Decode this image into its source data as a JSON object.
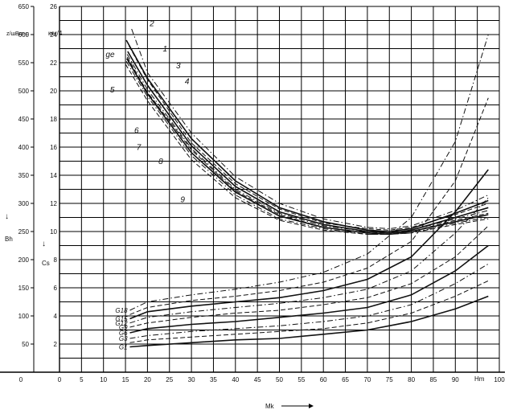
{
  "chart_data": {
    "type": "line",
    "title": "",
    "xlabel": "Mk",
    "x_unit": "Hm",
    "xlim": [
      0,
      100
    ],
    "x_ticks": [
      0,
      5,
      10,
      15,
      20,
      25,
      30,
      35,
      40,
      45,
      50,
      55,
      60,
      65,
      70,
      75,
      80,
      85,
      90,
      100
    ],
    "left_axis": {
      "label": "Bh",
      "unit": "z/шBm-u",
      "ylim": [
        0,
        650
      ],
      "ticks": [
        50,
        100,
        150,
        200,
        250,
        300,
        350,
        400,
        450,
        500,
        550,
        600,
        650
      ]
    },
    "right_axis": {
      "label": "Cs",
      "unit": "кer/4",
      "ylim": [
        0,
        26
      ],
      "ticks": [
        2,
        4,
        6,
        8,
        10,
        12,
        14,
        16,
        18,
        20,
        22,
        24,
        26
      ]
    },
    "grid": true,
    "fuel_curves": [
      {
        "name": "1",
        "style": "solid",
        "x": [
          15.2,
          20,
          30,
          40,
          50,
          60,
          70,
          75,
          80,
          90,
          97.5
        ],
        "y": [
          23.6,
          20.9,
          16.6,
          13.6,
          11.7,
          10.7,
          10.1,
          10.0,
          10.2,
          11.3,
          12.2
        ]
      },
      {
        "name": "2",
        "style": "dashdot",
        "x": [
          16.4,
          20,
          30,
          40,
          50,
          60,
          70,
          75,
          80,
          90,
          97.5
        ],
        "y": [
          24.4,
          21.3,
          17.0,
          13.9,
          12.0,
          10.9,
          10.3,
          10.2,
          10.4,
          11.5,
          12.6
        ]
      },
      {
        "name": "3",
        "style": "dashed",
        "x": [
          15.8,
          20,
          30,
          40,
          50,
          60,
          70,
          75,
          80,
          90,
          97.5
        ],
        "y": [
          23.2,
          20.8,
          16.3,
          13.4,
          11.6,
          10.6,
          10.2,
          10.1,
          10.3,
          11.2,
          12.0
        ]
      },
      {
        "name": "4",
        "style": "solid",
        "x": [
          15.5,
          20,
          30,
          40,
          50,
          60,
          70,
          75,
          80,
          90,
          97.5
        ],
        "y": [
          22.8,
          20.4,
          16.1,
          13.2,
          11.4,
          10.5,
          10.0,
          9.9,
          10.1,
          11.0,
          11.7
        ]
      },
      {
        "name": "5",
        "style": "dashdot",
        "x": [
          15.4,
          20,
          30,
          40,
          50,
          60,
          70,
          75,
          80,
          90,
          97.5
        ],
        "y": [
          22.6,
          20.1,
          15.9,
          13.0,
          11.3,
          10.4,
          10.0,
          9.9,
          10.1,
          10.9,
          11.5
        ]
      },
      {
        "name": "6",
        "style": "dashed",
        "x": [
          15.4,
          20,
          30,
          40,
          50,
          60,
          70,
          75,
          80,
          90,
          97.5
        ],
        "y": [
          22.4,
          19.9,
          15.8,
          12.9,
          11.2,
          10.3,
          9.9,
          9.9,
          10.0,
          10.8,
          11.3
        ]
      },
      {
        "name": "7",
        "style": "solid",
        "x": [
          15.3,
          20,
          30,
          40,
          50,
          60,
          70,
          75,
          80,
          90,
          97.5
        ],
        "y": [
          22.3,
          19.8,
          15.6,
          12.8,
          11.1,
          10.3,
          9.9,
          9.8,
          10.0,
          10.7,
          11.2
        ]
      },
      {
        "name": "8",
        "style": "dashdot",
        "x": [
          15.2,
          20,
          30,
          40,
          50,
          60,
          70,
          75,
          80,
          90,
          97.5
        ],
        "y": [
          22.1,
          19.6,
          15.4,
          12.6,
          10.9,
          10.2,
          9.8,
          9.8,
          9.9,
          10.6,
          11.0
        ]
      },
      {
        "name": "9",
        "style": "dashed",
        "x": [
          15.0,
          20,
          30,
          40,
          50,
          60,
          70,
          75,
          80,
          90,
          97.5
        ],
        "y": [
          21.9,
          19.3,
          15.1,
          12.4,
          10.8,
          10.1,
          9.8,
          9.8,
          9.9,
          10.5,
          10.9
        ]
      }
    ],
    "hour_curves": [
      {
        "name": "G18",
        "style": "dashdot",
        "x": [
          16,
          20,
          30,
          40,
          50,
          60,
          70,
          80,
          90,
          97.5
        ],
        "y": [
          4.4,
          5.0,
          5.5,
          5.9,
          6.4,
          7.1,
          8.4,
          11.0,
          16.4,
          24.0
        ]
      },
      {
        "name": "",
        "style": "dashed",
        "x": [
          16,
          20,
          30,
          40,
          50,
          60,
          70,
          80,
          90,
          97.5
        ],
        "y": [
          4.1,
          4.6,
          5.1,
          5.4,
          5.8,
          6.4,
          7.4,
          9.3,
          13.6,
          19.5
        ]
      },
      {
        "name": "G15",
        "style": "solid",
        "x": [
          16,
          20,
          30,
          40,
          50,
          60,
          70,
          80,
          90,
          97.5
        ],
        "y": [
          3.8,
          4.3,
          4.7,
          5.0,
          5.3,
          5.8,
          6.6,
          8.2,
          11.4,
          14.4
        ]
      },
      {
        "name": "G12",
        "style": "dashdot",
        "x": [
          16,
          20,
          30,
          40,
          50,
          60,
          70,
          80,
          90,
          97.5
        ],
        "y": [
          3.5,
          3.9,
          4.3,
          4.6,
          4.9,
          5.3,
          5.9,
          7.2,
          9.9,
          12.4
        ]
      },
      {
        "name": "G9",
        "style": "dashed",
        "x": [
          16,
          20,
          30,
          40,
          50,
          60,
          70,
          80,
          90,
          97.5
        ],
        "y": [
          3.2,
          3.5,
          3.9,
          4.2,
          4.4,
          4.8,
          5.3,
          6.3,
          8.2,
          10.4
        ]
      },
      {
        "name": "G6",
        "style": "solid",
        "x": [
          16,
          20,
          30,
          40,
          50,
          60,
          70,
          80,
          90,
          97.5
        ],
        "y": [
          2.8,
          3.1,
          3.4,
          3.6,
          3.9,
          4.2,
          4.6,
          5.5,
          7.2,
          9.0
        ]
      },
      {
        "name": "G3",
        "style": "dashdot",
        "x": [
          16,
          20,
          30,
          40,
          50,
          60,
          70,
          80,
          90,
          97.5
        ],
        "y": [
          2.4,
          2.6,
          2.9,
          3.1,
          3.3,
          3.6,
          4.0,
          4.8,
          6.3,
          7.7
        ]
      },
      {
        "name": "",
        "style": "dashed",
        "x": [
          16,
          20,
          30,
          40,
          50,
          60,
          70,
          80,
          90,
          97.5
        ],
        "y": [
          2.1,
          2.3,
          2.5,
          2.7,
          2.9,
          3.1,
          3.5,
          4.2,
          5.4,
          6.5
        ]
      },
      {
        "name": "G1",
        "style": "solid",
        "x": [
          16,
          20,
          30,
          40,
          50,
          60,
          70,
          80,
          90,
          97.5
        ],
        "y": [
          1.8,
          1.9,
          2.1,
          2.3,
          2.4,
          2.7,
          3.0,
          3.6,
          4.5,
          5.4
        ]
      }
    ],
    "curve_labels": [
      {
        "text": "2",
        "x": 20.5,
        "y": 24.6
      },
      {
        "text": "1",
        "x": 23.5,
        "y": 22.8
      },
      {
        "text": "3",
        "x": 26.5,
        "y": 21.6
      },
      {
        "text": "4",
        "x": 28.5,
        "y": 20.5
      },
      {
        "text": "5",
        "x": 11.5,
        "y": 19.9
      },
      {
        "text": "6",
        "x": 17.0,
        "y": 17.0
      },
      {
        "text": "7",
        "x": 17.5,
        "y": 15.8
      },
      {
        "text": "8",
        "x": 22.5,
        "y": 14.8
      },
      {
        "text": "9",
        "x": 27.5,
        "y": 12.1
      },
      {
        "text": "ge",
        "x": 10.5,
        "y": 22.4
      }
    ]
  }
}
